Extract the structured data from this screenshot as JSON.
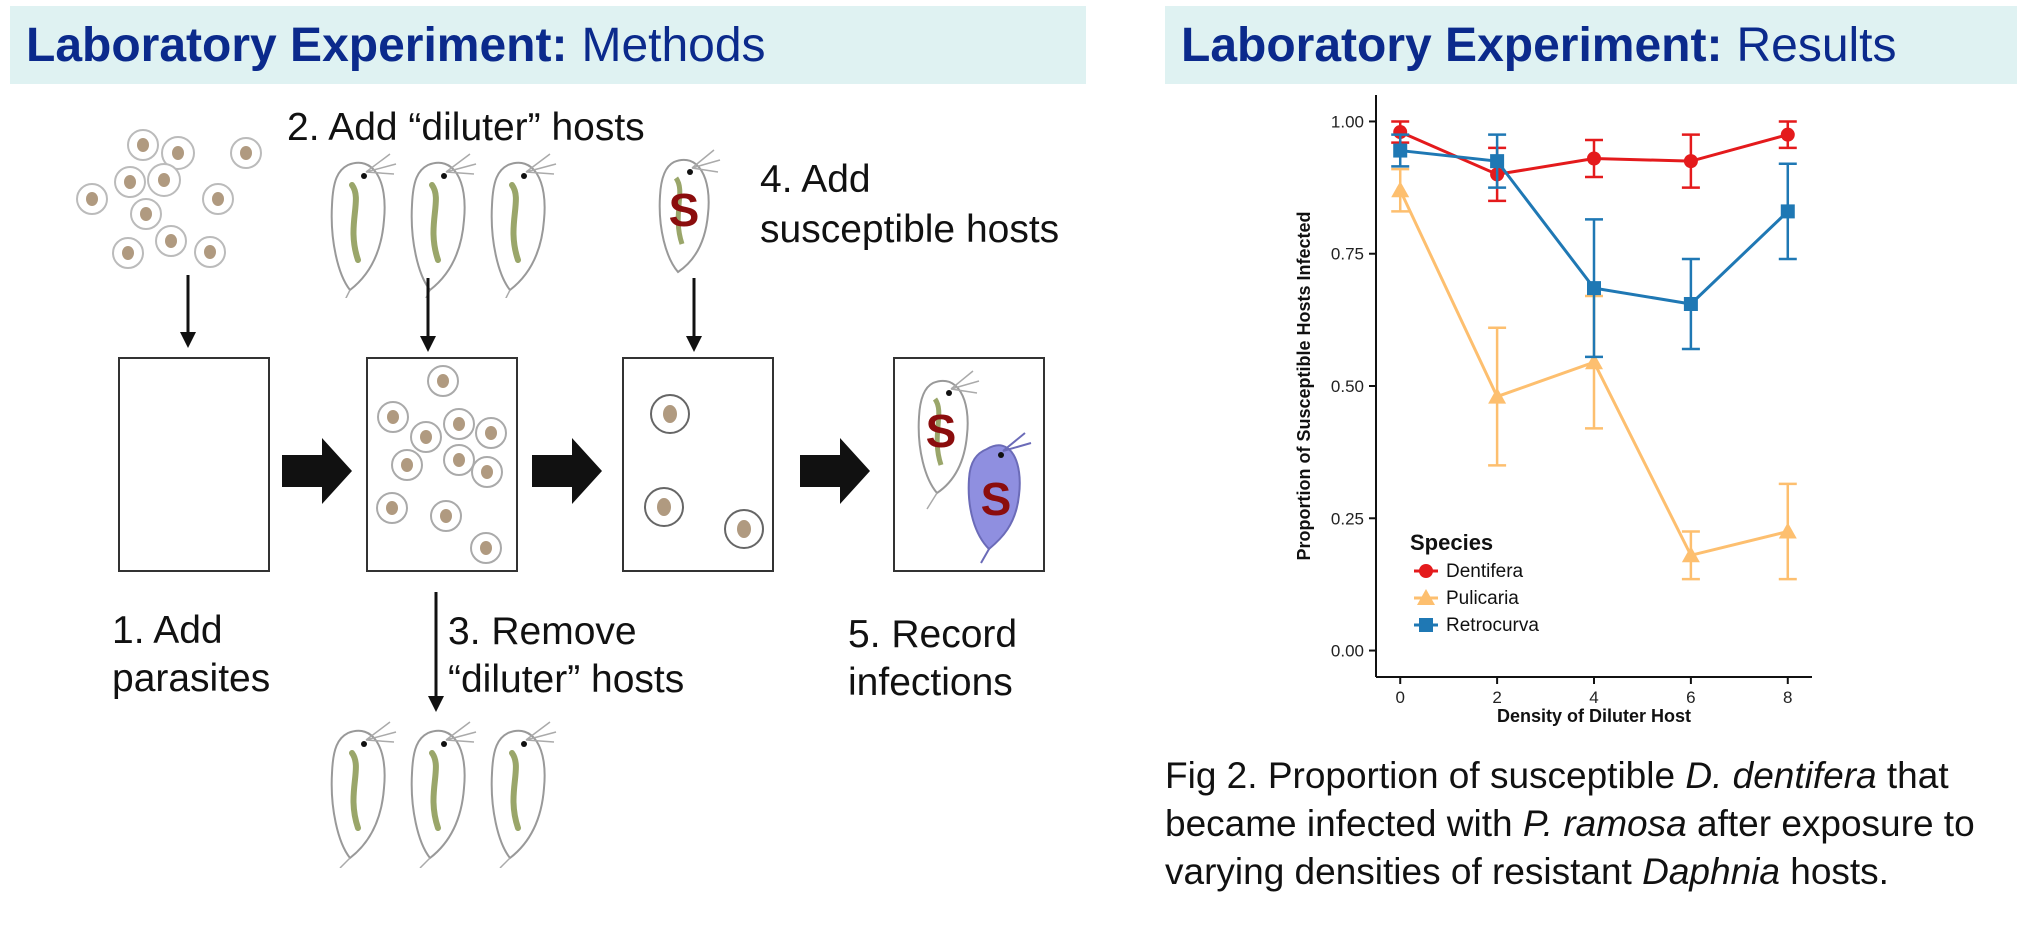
{
  "methods": {
    "header_bold": "Laboratory Experiment:",
    "header_rest": "Methods",
    "step1": {
      "line1": "1. Add",
      "line2": "parasites"
    },
    "step2": "2. Add “diluter” hosts",
    "step3": {
      "line1": "3. Remove",
      "line2": "“diluter” hosts"
    },
    "step4": {
      "line1": "4. Add",
      "line2": "susceptible hosts"
    },
    "step5": {
      "line1": "5. Record",
      "line2": "infections"
    },
    "susceptible_mark": "S"
  },
  "results": {
    "header_bold": "Laboratory Experiment:",
    "header_rest": "Results",
    "caption": {
      "p1": "Fig 2. Proportion of susceptible ",
      "i1": "D. dentifera",
      "p2": " that became infected with ",
      "i2": "P. ramosa",
      "p3": " after exposure to varying densities of resistant ",
      "i3": "Daphnia",
      "p4": " hosts."
    }
  },
  "chart_data": {
    "type": "line",
    "xlabel": "Density of Diluter Host",
    "ylabel": "Proportion of Susceptible Hosts Infected",
    "x": [
      0,
      2,
      4,
      6,
      8
    ],
    "xticks": [
      "0",
      "2",
      "4",
      "6",
      "8"
    ],
    "yticks": [
      "0.00",
      "0.25",
      "0.50",
      "0.75",
      "1.00"
    ],
    "xlim": [
      -0.5,
      8.5
    ],
    "ylim": [
      -0.05,
      1.05
    ],
    "legend_title": "Species",
    "legend_position": "bottom-left",
    "series": [
      {
        "name": "Dentifera",
        "color": "#e41a1c",
        "marker": "circle",
        "values": [
          0.98,
          0.9,
          0.93,
          0.925,
          0.975
        ],
        "err": [
          0.02,
          0.05,
          0.035,
          0.05,
          0.025
        ]
      },
      {
        "name": "Pulicaria",
        "color": "#fdbf6f",
        "marker": "triangle",
        "values": [
          0.87,
          0.48,
          0.545,
          0.18,
          0.225
        ],
        "err": [
          0.04,
          0.13,
          0.125,
          0.045,
          0.09
        ]
      },
      {
        "name": "Retrocurva",
        "color": "#1f78b4",
        "marker": "square",
        "values": [
          0.945,
          0.925,
          0.685,
          0.655,
          0.83
        ],
        "err": [
          0.03,
          0.05,
          0.13,
          0.085,
          0.09
        ]
      }
    ]
  }
}
